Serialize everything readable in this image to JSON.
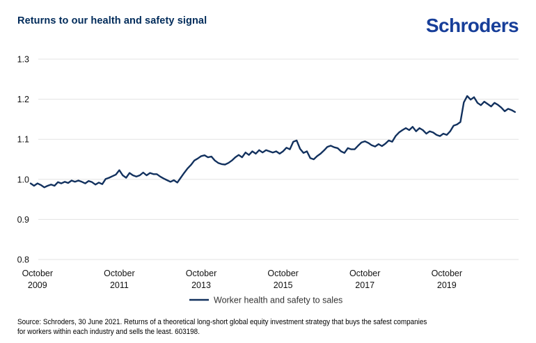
{
  "header": {
    "title": "Returns to our health and safety signal",
    "logo_text": "Schroders",
    "title_color": "#002B5A",
    "logo_color": "#173E99"
  },
  "chart_data": {
    "type": "line",
    "title": "Returns to our health and safety signal",
    "xlabel": "",
    "ylabel": "",
    "ylim": [
      0.8,
      1.3
    ],
    "grid": true,
    "grid_color": "#E3E3E3",
    "tick_text_color": "#111111",
    "legend_position": "bottom",
    "y_ticks": [
      "1.3",
      "1.2",
      "1.1",
      "1.0",
      "0.9",
      "0.8"
    ],
    "x_ticks": [
      {
        "line1": "October",
        "line2": "2009",
        "index": 2
      },
      {
        "line1": "October",
        "line2": "2011",
        "index": 26
      },
      {
        "line1": "October",
        "line2": "2013",
        "index": 50
      },
      {
        "line1": "October",
        "line2": "2015",
        "index": 74
      },
      {
        "line1": "October",
        "line2": "2017",
        "index": 98
      },
      {
        "line1": "October",
        "line2": "2019",
        "index": 122
      }
    ],
    "x_period": "monthly, Aug 2009 - Jun 2021",
    "series": [
      {
        "name": "Worker health and safety to sales",
        "color": "#12315E",
        "values": [
          0.99,
          0.984,
          0.99,
          0.986,
          0.98,
          0.984,
          0.987,
          0.984,
          0.993,
          0.99,
          0.994,
          0.991,
          0.997,
          0.994,
          0.997,
          0.994,
          0.99,
          0.996,
          0.993,
          0.987,
          0.992,
          0.988,
          1.001,
          1.004,
          1.008,
          1.012,
          1.023,
          1.01,
          1.004,
          1.016,
          1.01,
          1.007,
          1.01,
          1.017,
          1.01,
          1.016,
          1.013,
          1.013,
          1.007,
          1.002,
          0.998,
          0.994,
          0.998,
          0.992,
          1.004,
          1.016,
          1.027,
          1.036,
          1.047,
          1.052,
          1.058,
          1.06,
          1.055,
          1.057,
          1.047,
          1.041,
          1.038,
          1.037,
          1.041,
          1.047,
          1.055,
          1.061,
          1.055,
          1.067,
          1.061,
          1.07,
          1.064,
          1.073,
          1.067,
          1.073,
          1.07,
          1.067,
          1.07,
          1.064,
          1.07,
          1.079,
          1.075,
          1.094,
          1.097,
          1.076,
          1.066,
          1.07,
          1.053,
          1.05,
          1.058,
          1.064,
          1.072,
          1.081,
          1.084,
          1.08,
          1.078,
          1.07,
          1.066,
          1.078,
          1.075,
          1.075,
          1.084,
          1.092,
          1.095,
          1.091,
          1.085,
          1.082,
          1.088,
          1.083,
          1.089,
          1.097,
          1.094,
          1.108,
          1.117,
          1.123,
          1.128,
          1.123,
          1.131,
          1.12,
          1.128,
          1.123,
          1.114,
          1.12,
          1.117,
          1.111,
          1.108,
          1.114,
          1.111,
          1.12,
          1.134,
          1.137,
          1.143,
          1.192,
          1.208,
          1.199,
          1.205,
          1.191,
          1.185,
          1.194,
          1.188,
          1.182,
          1.191,
          1.186,
          1.179,
          1.17,
          1.176,
          1.173,
          1.168
        ]
      }
    ]
  },
  "legend": {
    "label": "Worker health and safety to sales",
    "text_color": "#333333"
  },
  "footer": {
    "lines": [
      "Source: Schroders, 30 June 2021. Returns of a theoretical long-short global equity investment strategy that buys the safest companies",
      "for workers within each industry and sells the least. 603198."
    ]
  }
}
